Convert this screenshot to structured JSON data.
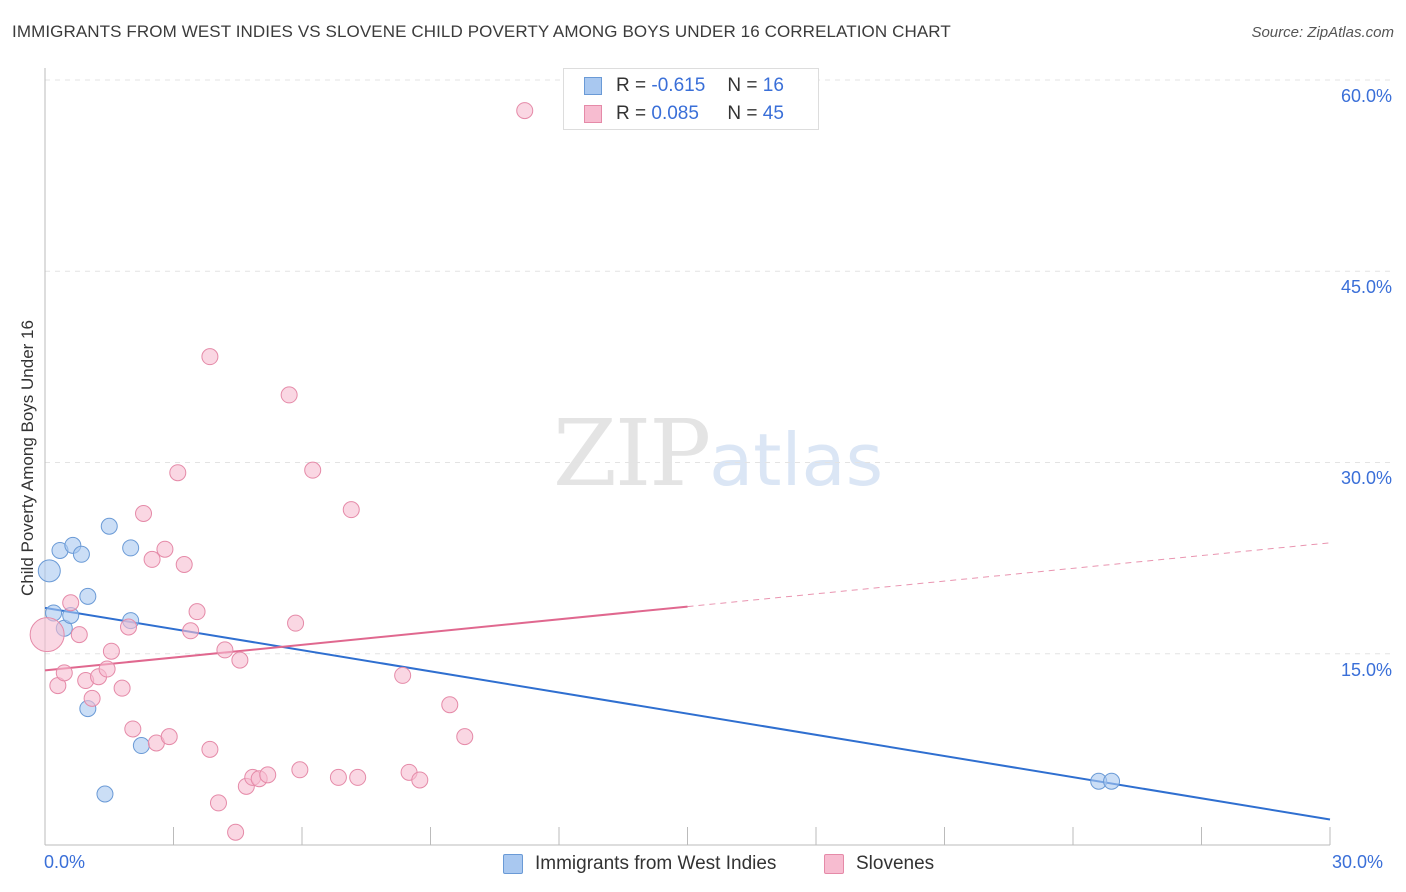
{
  "title": "IMMIGRANTS FROM WEST INDIES VS SLOVENE CHILD POVERTY AMONG BOYS UNDER 16 CORRELATION CHART",
  "source": "Source: ZipAtlas.com",
  "watermark": {
    "zip": "ZIP",
    "atlas": "atlas"
  },
  "legend": {
    "rows": [
      {
        "r_label": "R =",
        "r_value": "-0.615",
        "n_label": "N =",
        "n_value": "16",
        "color": "#a9c8f0",
        "border": "#6a9ad6"
      },
      {
        "r_label": "R =",
        "r_value": "0.085",
        "n_label": "N =",
        "n_value": "45",
        "color": "#f7bcd0",
        "border": "#e58aa8"
      }
    ]
  },
  "chart_data": {
    "type": "scatter",
    "title": "IMMIGRANTS FROM WEST INDIES VS SLOVENE CHILD POVERTY AMONG BOYS UNDER 16 CORRELATION CHART",
    "xlabel": "",
    "ylabel": "Child Poverty Among Boys Under 16",
    "xlim": [
      0,
      30
    ],
    "ylim": [
      0,
      60
    ],
    "x_tick_labels": [
      "0.0%",
      "30.0%"
    ],
    "y_ticks": [
      15,
      30,
      45,
      60
    ],
    "y_tick_labels": [
      "15.0%",
      "30.0%",
      "45.0%",
      "60.0%"
    ],
    "grid": true,
    "legend_position": "bottom",
    "series": [
      {
        "name": "Immigrants from West Indies",
        "color": "#a9c8f0",
        "stroke": "#6a9ad6",
        "line_color": "#2f6fd0",
        "trend": {
          "x": [
            0,
            30
          ],
          "y": [
            18.6,
            2.0
          ],
          "dashed_from": null
        },
        "points": [
          [
            0.1,
            21.5
          ],
          [
            0.2,
            18.2
          ],
          [
            0.35,
            23.1
          ],
          [
            0.45,
            17.0
          ],
          [
            0.6,
            18.0
          ],
          [
            0.65,
            23.5
          ],
          [
            0.85,
            22.8
          ],
          [
            1.0,
            19.5
          ],
          [
            1.0,
            10.7
          ],
          [
            1.5,
            25.0
          ],
          [
            1.4,
            4.0
          ],
          [
            2.0,
            23.3
          ],
          [
            2.0,
            17.6
          ],
          [
            2.25,
            7.8
          ],
          [
            24.6,
            5.0
          ],
          [
            24.9,
            5.0
          ]
        ]
      },
      {
        "name": "Slovenes",
        "color": "#f7bcd0",
        "stroke": "#e58aa8",
        "line_color": "#e0688f",
        "trend": {
          "x": [
            0,
            30
          ],
          "y": [
            13.7,
            23.7
          ],
          "dashed_from": 15
        },
        "points": [
          [
            0.05,
            16.5
          ],
          [
            0.3,
            12.5
          ],
          [
            0.45,
            13.5
          ],
          [
            0.6,
            19.0
          ],
          [
            0.8,
            16.5
          ],
          [
            0.95,
            12.9
          ],
          [
            1.1,
            11.5
          ],
          [
            1.25,
            13.2
          ],
          [
            1.45,
            13.8
          ],
          [
            1.55,
            15.2
          ],
          [
            1.8,
            12.3
          ],
          [
            1.95,
            17.1
          ],
          [
            2.05,
            9.1
          ],
          [
            2.3,
            26.0
          ],
          [
            2.5,
            22.4
          ],
          [
            2.6,
            8.0
          ],
          [
            2.8,
            23.2
          ],
          [
            2.9,
            8.5
          ],
          [
            3.1,
            29.2
          ],
          [
            3.25,
            22.0
          ],
          [
            3.4,
            16.8
          ],
          [
            3.55,
            18.3
          ],
          [
            3.85,
            38.3
          ],
          [
            3.85,
            7.5
          ],
          [
            4.05,
            3.3
          ],
          [
            4.2,
            15.3
          ],
          [
            4.45,
            1.0
          ],
          [
            4.55,
            14.5
          ],
          [
            4.7,
            4.6
          ],
          [
            4.85,
            5.3
          ],
          [
            5.0,
            5.2
          ],
          [
            5.2,
            5.5
          ],
          [
            5.7,
            35.3
          ],
          [
            5.85,
            17.4
          ],
          [
            5.95,
            5.9
          ],
          [
            6.25,
            29.4
          ],
          [
            6.85,
            5.3
          ],
          [
            7.15,
            26.3
          ],
          [
            7.3,
            5.3
          ],
          [
            8.35,
            13.3
          ],
          [
            8.5,
            5.7
          ],
          [
            8.75,
            5.1
          ],
          [
            9.45,
            11.0
          ],
          [
            9.8,
            8.5
          ],
          [
            11.2,
            57.6
          ]
        ]
      }
    ]
  }
}
